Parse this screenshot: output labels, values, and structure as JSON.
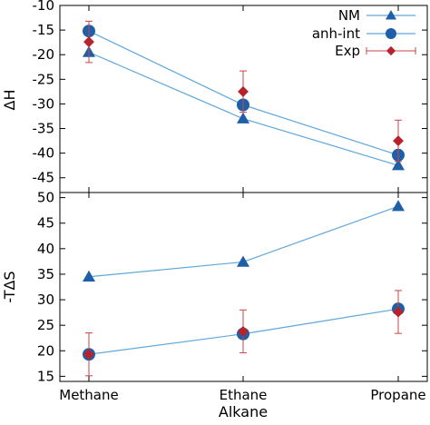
{
  "chart_data": [
    {
      "type": "line",
      "panel": "top",
      "ylabel": "ΔH",
      "xlabel": "",
      "categories": [
        "Methane",
        "Ethane",
        "Propane"
      ],
      "ylim": [
        -48,
        -10
      ],
      "yticks": [
        -45,
        -40,
        -35,
        -30,
        -25,
        -20,
        -15,
        -10
      ],
      "legend_position": "top-right",
      "series": [
        {
          "name": "NM",
          "marker": "triangle",
          "color": "#1f5fa8",
          "line": true,
          "values": [
            -19.5,
            -33.0,
            -42.5
          ]
        },
        {
          "name": "anh-int",
          "marker": "circle",
          "color": "#1f5fa8",
          "line": true,
          "values": [
            -15.2,
            -30.2,
            -40.4
          ]
        },
        {
          "name": "Exp",
          "marker": "diamond",
          "color": "#b8232b",
          "line": false,
          "values": [
            -17.4,
            -27.5,
            -37.5
          ],
          "errors": [
            4.2,
            4.2,
            4.2
          ]
        }
      ]
    },
    {
      "type": "line",
      "panel": "bottom",
      "ylabel": "-TΔS",
      "xlabel": "Alkane",
      "categories": [
        "Methane",
        "Ethane",
        "Propane"
      ],
      "ylim": [
        14,
        51
      ],
      "yticks": [
        15,
        20,
        25,
        30,
        35,
        40,
        45,
        50
      ],
      "series": [
        {
          "name": "NM",
          "marker": "triangle",
          "color": "#1f5fa8",
          "line": true,
          "values": [
            34.5,
            37.4,
            48.3
          ]
        },
        {
          "name": "anh-int",
          "marker": "circle",
          "color": "#1f5fa8",
          "line": true,
          "values": [
            19.3,
            23.3,
            28.2
          ]
        },
        {
          "name": "Exp",
          "marker": "diamond",
          "color": "#b8232b",
          "line": false,
          "values": [
            19.3,
            23.8,
            27.6
          ],
          "errors": [
            4.2,
            4.2,
            4.2
          ]
        }
      ]
    }
  ]
}
